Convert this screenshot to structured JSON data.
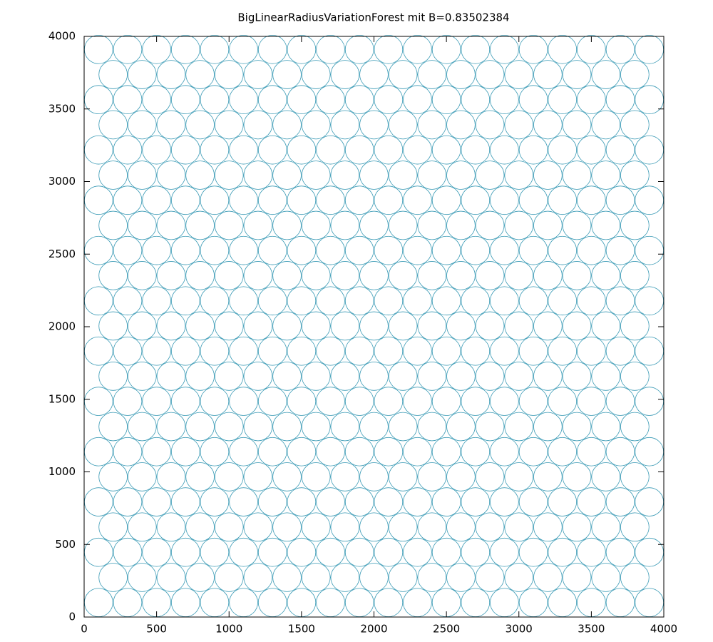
{
  "chart_data": {
    "type": "circles",
    "title": "BigLinearRadiusVariationForest mit B=0.83502384",
    "xlim": [
      0,
      4000
    ],
    "ylim": [
      0,
      4000
    ],
    "xticks": [
      0,
      500,
      1000,
      1500,
      2000,
      2500,
      3000,
      3500,
      4000
    ],
    "yticks": [
      0,
      500,
      1000,
      1500,
      2000,
      2500,
      3000,
      3500,
      4000
    ],
    "color": "#3a9ab5",
    "radius": 98,
    "rows": [
      {
        "y": 100,
        "x": [
          100,
          300,
          500,
          700,
          900,
          1100,
          1300,
          1500,
          1700,
          1900,
          2100,
          2300,
          2500,
          2700,
          2900,
          3100,
          3300,
          3500,
          3700,
          3900
        ]
      },
      {
        "y": 273,
        "x": [
          200,
          400,
          600,
          800,
          1000,
          1200,
          1400,
          1600,
          1800,
          2000,
          2200,
          2400,
          2600,
          2800,
          3000,
          3200,
          3400,
          3600,
          3800
        ]
      },
      {
        "y": 446,
        "x": [
          100,
          300,
          500,
          700,
          900,
          1100,
          1300,
          1500,
          1700,
          1900,
          2100,
          2300,
          2500,
          2700,
          2900,
          3100,
          3300,
          3500,
          3700,
          3900
        ]
      },
      {
        "y": 620,
        "x": [
          200,
          400,
          600,
          800,
          1000,
          1200,
          1400,
          1600,
          1800,
          2000,
          2200,
          2400,
          2600,
          2800,
          3000,
          3200,
          3400,
          3600,
          3800
        ]
      },
      {
        "y": 793,
        "x": [
          100,
          300,
          500,
          700,
          900,
          1100,
          1300,
          1500,
          1700,
          1900,
          2100,
          2300,
          2500,
          2700,
          2900,
          3100,
          3300,
          3500,
          3700,
          3900
        ]
      },
      {
        "y": 966,
        "x": [
          200,
          400,
          600,
          800,
          1000,
          1200,
          1400,
          1600,
          1800,
          2000,
          2200,
          2400,
          2600,
          2800,
          3000,
          3200,
          3400,
          3600,
          3800
        ]
      },
      {
        "y": 1139,
        "x": [
          100,
          300,
          500,
          700,
          900,
          1100,
          1300,
          1500,
          1700,
          1900,
          2100,
          2300,
          2500,
          2700,
          2900,
          3100,
          3300,
          3500,
          3700,
          3900
        ]
      },
      {
        "y": 1312,
        "x": [
          200,
          400,
          600,
          800,
          1000,
          1200,
          1400,
          1600,
          1800,
          2000,
          2200,
          2400,
          2600,
          2800,
          3000,
          3200,
          3400,
          3600,
          3800
        ]
      },
      {
        "y": 1486,
        "x": [
          100,
          300,
          500,
          700,
          900,
          1100,
          1300,
          1500,
          1700,
          1900,
          2100,
          2300,
          2500,
          2700,
          2900,
          3100,
          3300,
          3500,
          3700,
          3900
        ]
      },
      {
        "y": 1659,
        "x": [
          200,
          400,
          600,
          800,
          1000,
          1200,
          1400,
          1600,
          1800,
          2000,
          2200,
          2400,
          2600,
          2800,
          3000,
          3200,
          3400,
          3600,
          3800
        ]
      },
      {
        "y": 1832,
        "x": [
          100,
          300,
          500,
          700,
          900,
          1100,
          1300,
          1500,
          1700,
          1900,
          2100,
          2300,
          2500,
          2700,
          2900,
          3100,
          3300,
          3500,
          3700,
          3900
        ]
      },
      {
        "y": 2005,
        "x": [
          200,
          400,
          600,
          800,
          1000,
          1200,
          1400,
          1600,
          1800,
          2000,
          2200,
          2400,
          2600,
          2800,
          3000,
          3200,
          3400,
          3600,
          3800
        ]
      },
      {
        "y": 2178,
        "x": [
          100,
          300,
          500,
          700,
          900,
          1100,
          1300,
          1500,
          1700,
          1900,
          2100,
          2300,
          2500,
          2700,
          2900,
          3100,
          3300,
          3500,
          3700,
          3900
        ]
      },
      {
        "y": 2352,
        "x": [
          200,
          400,
          600,
          800,
          1000,
          1200,
          1400,
          1600,
          1800,
          2000,
          2200,
          2400,
          2600,
          2800,
          3000,
          3200,
          3400,
          3600,
          3800
        ]
      },
      {
        "y": 2525,
        "x": [
          100,
          300,
          500,
          700,
          900,
          1100,
          1300,
          1500,
          1700,
          1900,
          2100,
          2300,
          2500,
          2700,
          2900,
          3100,
          3300,
          3500,
          3700,
          3900
        ]
      },
      {
        "y": 2698,
        "x": [
          200,
          400,
          600,
          800,
          1000,
          1200,
          1400,
          1600,
          1800,
          2000,
          2200,
          2400,
          2600,
          2800,
          3000,
          3200,
          3400,
          3600,
          3800
        ]
      },
      {
        "y": 2871,
        "x": [
          100,
          300,
          500,
          700,
          900,
          1100,
          1300,
          1500,
          1700,
          1900,
          2100,
          2300,
          2500,
          2700,
          2900,
          3100,
          3300,
          3500,
          3700,
          3900
        ]
      },
      {
        "y": 3044,
        "x": [
          200,
          400,
          600,
          800,
          1000,
          1200,
          1400,
          1600,
          1800,
          2000,
          2200,
          2400,
          2600,
          2800,
          3000,
          3200,
          3400,
          3600,
          3800
        ]
      },
      {
        "y": 3218,
        "x": [
          100,
          300,
          500,
          700,
          900,
          1100,
          1300,
          1500,
          1700,
          1900,
          2100,
          2300,
          2500,
          2700,
          2900,
          3100,
          3300,
          3500,
          3700,
          3900
        ]
      },
      {
        "y": 3391,
        "x": [
          200,
          400,
          600,
          800,
          1000,
          1200,
          1400,
          1600,
          1800,
          2000,
          2200,
          2400,
          2600,
          2800,
          3000,
          3200,
          3400,
          3600,
          3800
        ]
      },
      {
        "y": 3564,
        "x": [
          100,
          300,
          500,
          700,
          900,
          1100,
          1300,
          1500,
          1700,
          1900,
          2100,
          2300,
          2500,
          2700,
          2900,
          3100,
          3300,
          3500,
          3700,
          3900
        ]
      },
      {
        "y": 3737,
        "x": [
          200,
          400,
          600,
          800,
          1000,
          1200,
          1400,
          1600,
          1800,
          2000,
          2200,
          2400,
          2600,
          2800,
          3000,
          3200,
          3400,
          3600,
          3800
        ]
      },
      {
        "y": 3910,
        "x": [
          100,
          300,
          500,
          700,
          900,
          1100,
          1300,
          1500,
          1700,
          1900,
          2100,
          2300,
          2500,
          2700,
          2900,
          3100,
          3300,
          3500,
          3700,
          3900
        ]
      }
    ]
  }
}
